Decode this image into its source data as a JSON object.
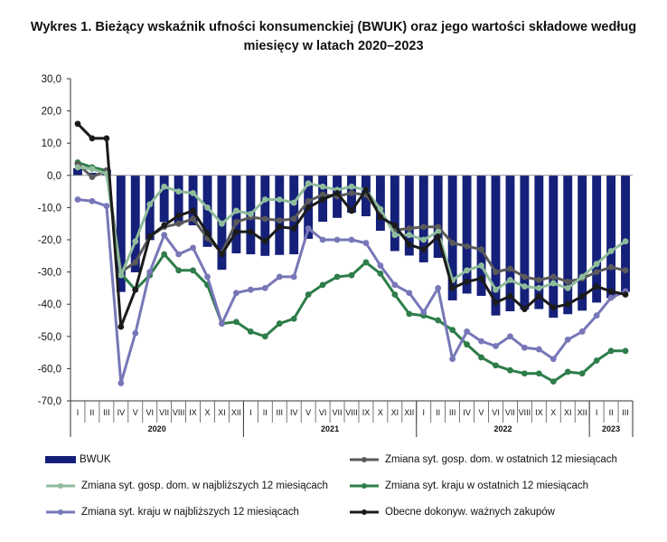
{
  "title_line1": "Wykres 1. Bieżący wskaźnik ufności konsumenckiej (BWUK) oraz jego wartości składowe według",
  "title_line2": "miesięcy w latach 2020–2023",
  "colors": {
    "bwuk": "#15207a",
    "past_household": "#5a5a5a",
    "future_household": "#8fbc9b",
    "past_country": "#2e7d4a",
    "future_country": "#7777b8",
    "purchases": "#1b1b1b"
  },
  "chart_data": {
    "type": "bar+line",
    "ylim": [
      -70,
      30
    ],
    "yticks": [
      "30,0",
      "20,0",
      "10,0",
      "0,0",
      "-10,0",
      "-20,0",
      "-30,0",
      "-40,0",
      "-50,0",
      "-60,0",
      "-70,0"
    ],
    "ytick_values": [
      30,
      20,
      10,
      0,
      -10,
      -20,
      -30,
      -40,
      -50,
      -60,
      -70
    ],
    "months": [
      "I",
      "II",
      "III",
      "IV",
      "V",
      "VI",
      "VII",
      "VIII",
      "IX",
      "X",
      "XI",
      "XII",
      "I",
      "II",
      "III",
      "IV",
      "V",
      "VI",
      "VII",
      "VIII",
      "IX",
      "X",
      "XI",
      "XII",
      "I",
      "II",
      "III",
      "IV",
      "V",
      "VI",
      "VII",
      "VIII",
      "IX",
      "X",
      "XI",
      "XII",
      "I",
      "II",
      "III"
    ],
    "years": [
      {
        "label": "2020",
        "start": 0,
        "end": 11
      },
      {
        "label": "2021",
        "start": 12,
        "end": 23
      },
      {
        "label": "2022",
        "start": 24,
        "end": 35
      },
      {
        "label": "2023",
        "start": 36,
        "end": 38
      }
    ],
    "series": [
      {
        "key": "bwuk",
        "name": "BWUK",
        "kind": "bar",
        "values": [
          2.2,
          0.8,
          1.8,
          -36.2,
          -30.1,
          -20.1,
          -14.5,
          -15.3,
          -15.5,
          -22.2,
          -29.3,
          -24.2,
          -24.5,
          -25,
          -24.7,
          -24.5,
          -19.7,
          -14.4,
          -13.2,
          -11.6,
          -12.7,
          -17.2,
          -23.5,
          -24.9,
          -27,
          -25.6,
          -38.8,
          -36.7,
          -37.4,
          -43.5,
          -42.2,
          -41.6,
          -41.5,
          -44.2,
          -43.1,
          -42,
          -39.5,
          -38.1,
          -36.2
        ]
      },
      {
        "key": "past_household",
        "name": "Zmiana syt. gosp. dom. w ostatnich 12 miesiącach",
        "kind": "line",
        "values": [
          3.5,
          -0.5,
          1.5,
          -30,
          -27,
          -19,
          -16,
          -15,
          -13.5,
          -19.5,
          -24,
          -14.5,
          -13,
          -13.5,
          -14,
          -13.5,
          -8,
          -6,
          -6.5,
          -5.5,
          -6,
          -12,
          -17,
          -16.5,
          -16,
          -16,
          -21,
          -22,
          -23,
          -30,
          -29,
          -31.5,
          -32.5,
          -31.5,
          -33,
          -32,
          -30,
          -28.5,
          -29.5
        ]
      },
      {
        "key": "future_household",
        "name": "Zmiana syt. gosp. dom. w najbliższych 12 miesiącach",
        "kind": "line",
        "values": [
          2.5,
          2,
          0.5,
          -31,
          -20.5,
          -9,
          -3.5,
          -5,
          -5.5,
          -10,
          -15,
          -11,
          -12,
          -7.5,
          -7.5,
          -8.5,
          -2.5,
          -3.5,
          -4.5,
          -3.5,
          -4.5,
          -10.5,
          -18.5,
          -18.5,
          -20,
          -17.5,
          -32.5,
          -29.5,
          -28,
          -35.5,
          -32.5,
          -34.5,
          -35,
          -33.5,
          -35,
          -31.5,
          -27.5,
          -23.5,
          -20.5
        ]
      },
      {
        "key": "past_country",
        "name": "Zmiana syt. kraju w ostatnich 12 miesiącach",
        "kind": "line",
        "values": [
          4,
          2.5,
          1.5,
          -30.5,
          -35.5,
          -31,
          -24.5,
          -29.5,
          -29.5,
          -34,
          -46,
          -45.5,
          -48.5,
          -50,
          -46,
          -44.5,
          -37,
          -34,
          -31.5,
          -31,
          -27,
          -30.5,
          -37,
          -43,
          -43.5,
          -45,
          -48,
          -52.5,
          -56.5,
          -59,
          -60.5,
          -61.5,
          -61.5,
          -64,
          -61,
          -61.5,
          -57.5,
          -54.5,
          -54.5
        ]
      },
      {
        "key": "future_country",
        "name": "Zmiana syt. kraju w najbliższych 12 miesiącach",
        "kind": "line",
        "values": [
          -7.5,
          -8,
          -9.5,
          -64.5,
          -49,
          -30,
          -18.5,
          -24.5,
          -22.5,
          -31.5,
          -46,
          -36.5,
          -35.5,
          -35,
          -31.5,
          -31.5,
          -16.5,
          -20,
          -20,
          -20,
          -21,
          -28,
          -34,
          -36.5,
          -42.5,
          -35,
          -57,
          -48.5,
          -51.5,
          -53,
          -50,
          -53.5,
          -54,
          -57,
          -51,
          -48.5,
          -43.5,
          -38,
          -36
        ]
      },
      {
        "key": "purchases",
        "name": "Obecne dokonyw. ważnych zakupów",
        "kind": "line",
        "values": [
          16,
          11.5,
          11.5,
          -47,
          -35.5,
          -19,
          -15.5,
          -12.5,
          -11,
          -18,
          -24.5,
          -17.5,
          -17.5,
          -20.5,
          -16,
          -16.5,
          -10,
          -7.5,
          -5.5,
          -11,
          -4.5,
          -13,
          -15.5,
          -21.5,
          -23,
          -19,
          -35,
          -33,
          -32,
          -39.5,
          -37.5,
          -41.5,
          -37.5,
          -41,
          -40,
          -37.5,
          -34.5,
          -36,
          -37
        ]
      }
    ]
  }
}
